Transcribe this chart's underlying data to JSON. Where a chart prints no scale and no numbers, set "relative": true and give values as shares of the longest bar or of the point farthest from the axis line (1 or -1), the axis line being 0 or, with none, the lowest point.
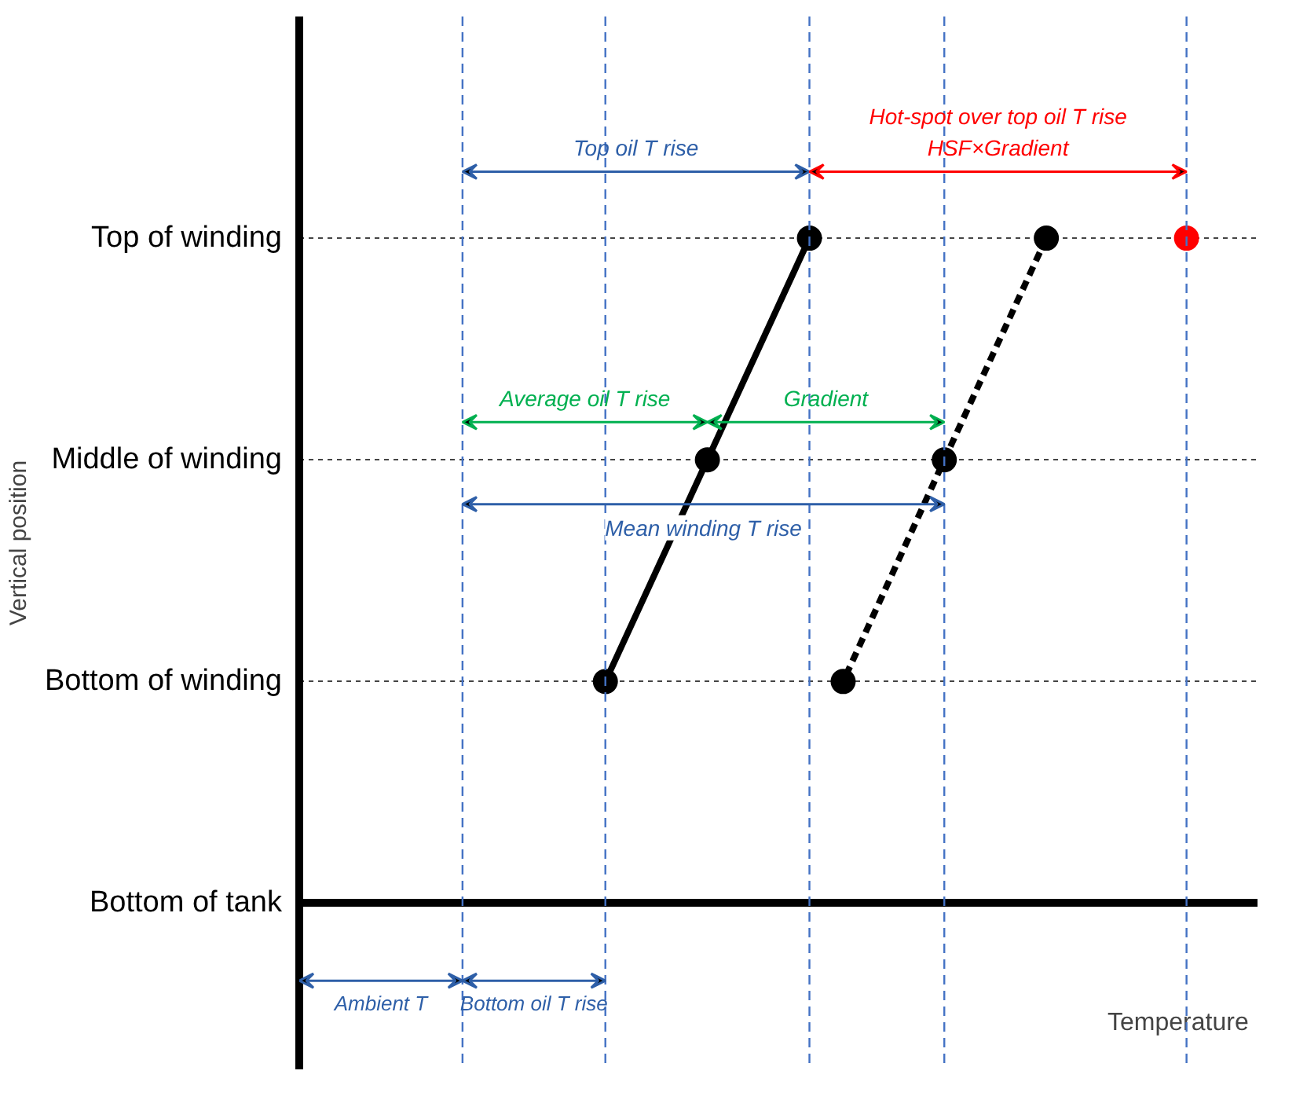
{
  "chart_data": {
    "type": "line",
    "orientation": "horizontal",
    "relative": true,
    "xlabel": "Temperature",
    "ylabel": "Vertical position",
    "categories": [
      "Top of winding",
      "Middle of winding",
      "Bottom of winding",
      "Bottom of tank"
    ],
    "series": [
      {
        "color": "#000000",
        "line_style": "solid",
        "marker": "circle",
        "values": [
          0.575,
          0.46,
          0.345,
          null
        ]
      },
      {
        "color": "#000000",
        "line_style": "dashed",
        "marker": "circle",
        "values": [
          0.842,
          0.727,
          0.613,
          null
        ]
      },
      {
        "type": "scatter",
        "color": "#ff0000",
        "marker": "circle",
        "values": [
          1.0,
          null,
          null,
          null
        ]
      }
    ],
    "grid": "y",
    "ref_lines": [
      {
        "axis": "x",
        "value": 0.184,
        "color": "#4472c4",
        "line_style": "dashed"
      },
      {
        "axis": "x",
        "value": 0.345,
        "color": "#4472c4",
        "line_style": "dashed"
      },
      {
        "axis": "x",
        "value": 0.575,
        "color": "#4472c4",
        "line_style": "dashed"
      },
      {
        "axis": "x",
        "value": 0.727,
        "color": "#4472c4",
        "line_style": "dashed"
      },
      {
        "axis": "x",
        "value": 1.0,
        "color": "#4472c4",
        "line_style": "dashed"
      }
    ],
    "annotations": [
      "Top oil T rise",
      "Hot-spot over top oil T rise\nHSF×Gradient",
      "Average oil T rise",
      "Gradient",
      "Mean winding T rise",
      "Ambient T",
      "Bottom oil T rise"
    ]
  }
}
